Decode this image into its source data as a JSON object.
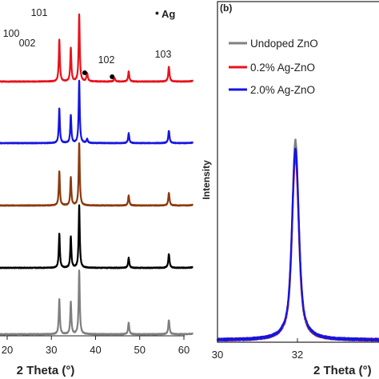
{
  "chart_data": [
    {
      "type": "line",
      "panel_label": "",
      "xlabel": "2 Theta (°)",
      "xlim": [
        20,
        60
      ],
      "x_ticks": [
        20,
        30,
        40,
        50,
        60
      ],
      "x_tick_labels": [
        "20",
        "30",
        "40",
        "50",
        "60"
      ],
      "y_ticks_shown": false,
      "legend_entries": [
        {
          "marker": "•",
          "label": "Ag"
        }
      ],
      "peak_labels": [
        {
          "label": "100",
          "x": 31.8
        },
        {
          "label": "002",
          "x": 34.4
        },
        {
          "label": "101",
          "x": 36.3
        },
        {
          "label": "102",
          "x": 47.5
        },
        {
          "label": "103",
          "x": 56.6
        }
      ],
      "ag_markers_x": [
        38.1,
        44.3
      ],
      "peaks": [
        {
          "x": 31.8,
          "width": 0.15
        },
        {
          "x": 34.4,
          "width": 0.15
        },
        {
          "x": 36.3,
          "width": 0.15
        },
        {
          "x": 47.5,
          "width": 0.16
        },
        {
          "x": 56.6,
          "width": 0.17
        },
        {
          "x": 62.9,
          "width": 0.2
        }
      ],
      "series": [
        {
          "color": "#e8131b",
          "intensities": [
            0.62,
            0.5,
            1.0,
            0.15,
            0.22,
            0.22
          ],
          "ag_peaks": [
            0.12,
            0.05
          ]
        },
        {
          "color": "#1515e0",
          "intensities": [
            0.55,
            0.45,
            1.0,
            0.16,
            0.2,
            0.2
          ],
          "ag_peaks": [
            0.06,
            0.0
          ]
        },
        {
          "color": "#8b3a0e",
          "intensities": [
            0.55,
            0.45,
            1.0,
            0.16,
            0.2,
            0.2
          ],
          "ag_peaks": [
            0.0,
            0.0
          ]
        },
        {
          "color": "#000000",
          "intensities": [
            0.55,
            0.5,
            1.0,
            0.16,
            0.22,
            0.22
          ],
          "ag_peaks": [
            0.0,
            0.0
          ]
        },
        {
          "color": "#7f7f7f",
          "intensities": [
            0.55,
            0.5,
            1.0,
            0.18,
            0.22,
            0.22
          ],
          "ag_peaks": [
            0.0,
            0.0
          ]
        }
      ]
    },
    {
      "type": "line",
      "panel_label": "(b)",
      "xlabel": "2 Theta (°)",
      "ylabel": "Intensity",
      "xlim": [
        30,
        34
      ],
      "x_ticks": [
        30,
        32
      ],
      "x_tick_labels": [
        "30",
        "32"
      ],
      "y_ticks_shown": false,
      "legend_placement": "top-right",
      "peak_center": 31.95,
      "series": [
        {
          "name": "Undoped ZnO",
          "color": "#808080",
          "peak": 0.87,
          "width": 0.11
        },
        {
          "name": "0.2% Ag-ZnO",
          "color": "#e8131b",
          "peak": 0.8,
          "width": 0.12
        },
        {
          "name": "2.0% Ag-ZnO",
          "color": "#1515e0",
          "peak": 0.83,
          "width": 0.12
        }
      ]
    }
  ]
}
